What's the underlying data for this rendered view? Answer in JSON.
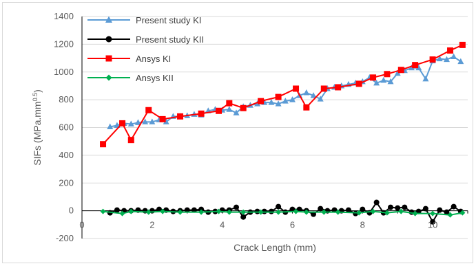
{
  "chart_data": {
    "type": "line",
    "title": "",
    "xlabel": "Crack Length (mm)",
    "ylabel": "SIFs (MPa.mm",
    "ylabel_superscript": "0.5",
    "ylabel_suffix": ")",
    "xlim": [
      0,
      11
    ],
    "ylim": [
      -200,
      1400
    ],
    "x_ticks": [
      0,
      2,
      4,
      6,
      8,
      10
    ],
    "y_ticks": [
      -200,
      0,
      200,
      400,
      600,
      800,
      1000,
      1200,
      1400
    ],
    "grid": "horizontal",
    "legend_position": "top-left",
    "series": [
      {
        "name": "Present study KI",
        "color": "#5b9bd5",
        "marker": "triangle",
        "x": [
          0.8,
          1.0,
          1.2,
          1.4,
          1.6,
          1.8,
          2.0,
          2.2,
          2.4,
          2.6,
          2.8,
          3.0,
          3.2,
          3.4,
          3.6,
          3.8,
          4.0,
          4.2,
          4.4,
          4.6,
          4.8,
          5.0,
          5.2,
          5.4,
          5.6,
          5.8,
          6.0,
          6.2,
          6.4,
          6.6,
          6.8,
          7.0,
          7.2,
          7.4,
          7.6,
          7.8,
          8.0,
          8.2,
          8.4,
          8.6,
          8.8,
          9.0,
          9.2,
          9.4,
          9.6,
          9.8,
          10.0,
          10.2,
          10.4,
          10.6,
          10.8
        ],
        "y": [
          605,
          615,
          630,
          625,
          635,
          640,
          640,
          655,
          640,
          680,
          680,
          685,
          695,
          690,
          720,
          730,
          725,
          730,
          705,
          750,
          760,
          770,
          780,
          780,
          770,
          790,
          800,
          830,
          850,
          830,
          805,
          880,
          890,
          900,
          910,
          920,
          930,
          960,
          920,
          940,
          930,
          990,
          1010,
          1030,
          1030,
          950,
          1080,
          1095,
          1090,
          1110,
          1075
        ]
      },
      {
        "name": "Present study KII",
        "color": "#000000",
        "marker": "circle",
        "x": [
          0.8,
          1.0,
          1.2,
          1.4,
          1.6,
          1.8,
          2.0,
          2.2,
          2.4,
          2.6,
          2.8,
          3.0,
          3.2,
          3.4,
          3.6,
          3.8,
          4.0,
          4.2,
          4.4,
          4.6,
          4.8,
          5.0,
          5.2,
          5.4,
          5.6,
          5.8,
          6.0,
          6.2,
          6.4,
          6.6,
          6.8,
          7.0,
          7.2,
          7.4,
          7.6,
          7.8,
          8.0,
          8.2,
          8.4,
          8.6,
          8.8,
          9.0,
          9.2,
          9.4,
          9.6,
          9.8,
          10.0,
          10.2,
          10.4,
          10.6,
          10.8
        ],
        "y": [
          -15,
          5,
          0,
          0,
          5,
          0,
          0,
          10,
          5,
          -5,
          0,
          5,
          5,
          10,
          -10,
          -5,
          5,
          5,
          25,
          -45,
          -10,
          -5,
          -5,
          -5,
          30,
          -10,
          10,
          10,
          0,
          -25,
          15,
          0,
          5,
          0,
          5,
          -20,
          10,
          -15,
          60,
          -15,
          25,
          20,
          25,
          -10,
          -5,
          15,
          -80,
          5,
          -10,
          30,
          -5
        ]
      },
      {
        "name": "Ansys KI",
        "color": "#ff0000",
        "marker": "square",
        "x": [
          0.6,
          1.15,
          1.4,
          1.9,
          2.3,
          2.8,
          3.4,
          3.9,
          4.2,
          4.6,
          5.1,
          5.6,
          6.1,
          6.4,
          6.9,
          7.3,
          7.9,
          8.3,
          8.7,
          9.1,
          9.5,
          10.0,
          10.5,
          10.85
        ],
        "y": [
          480,
          630,
          510,
          725,
          660,
          680,
          700,
          720,
          775,
          740,
          790,
          820,
          880,
          745,
          880,
          890,
          915,
          960,
          985,
          1015,
          1050,
          1090,
          1155,
          1195
        ]
      },
      {
        "name": "Ansys KII",
        "color": "#00b050",
        "marker": "diamond",
        "x": [
          0.6,
          1.15,
          1.4,
          1.9,
          2.3,
          2.8,
          3.4,
          3.9,
          4.2,
          4.6,
          5.1,
          5.6,
          6.1,
          6.4,
          6.9,
          7.3,
          7.9,
          8.3,
          8.7,
          9.1,
          9.5,
          10.0,
          10.5,
          10.85
        ],
        "y": [
          -5,
          -20,
          -5,
          -10,
          -5,
          -10,
          -10,
          -5,
          -10,
          -10,
          -10,
          -10,
          -5,
          -10,
          -10,
          -10,
          -15,
          -5,
          -15,
          -5,
          -20,
          -20,
          -30,
          -15
        ]
      }
    ]
  }
}
